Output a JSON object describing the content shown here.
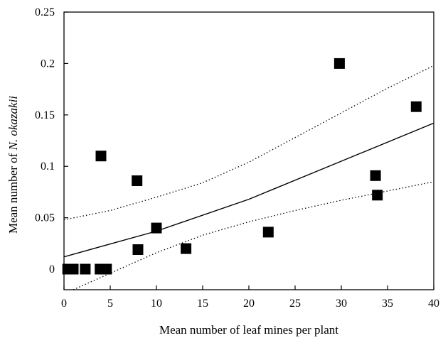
{
  "chart_data": {
    "type": "scatter",
    "title": "",
    "xlabel": "Mean number of leaf mines per plant",
    "ylabel_prefix": "Mean number of ",
    "ylabel_italic": "N. okazakii",
    "xlim": [
      0,
      40
    ],
    "ylim": [
      -0.02,
      0.25
    ],
    "x_ticks": [
      0,
      5,
      10,
      15,
      20,
      25,
      30,
      35,
      40
    ],
    "x_tick_labels": [
      "0",
      "5",
      "10",
      "15",
      "20",
      "25",
      "30",
      "35",
      "40"
    ],
    "y_ticks": [
      0,
      0.05,
      0.1,
      0.15,
      0.2,
      0.25
    ],
    "y_tick_labels": [
      "0",
      "0.05",
      "0.1",
      "0.15",
      "0.2",
      "0.25"
    ],
    "grid": false,
    "marker": "square",
    "marker_color": "#000000",
    "points": [
      {
        "x": 0.4,
        "y": 0
      },
      {
        "x": 1.0,
        "y": 0
      },
      {
        "x": 2.3,
        "y": 0
      },
      {
        "x": 3.9,
        "y": 0
      },
      {
        "x": 4.6,
        "y": 0
      },
      {
        "x": 4.0,
        "y": 0.11
      },
      {
        "x": 7.9,
        "y": 0.086
      },
      {
        "x": 8.0,
        "y": 0.019
      },
      {
        "x": 10.0,
        "y": 0.04
      },
      {
        "x": 13.2,
        "y": 0.02
      },
      {
        "x": 22.1,
        "y": 0.036
      },
      {
        "x": 29.8,
        "y": 0.2
      },
      {
        "x": 33.7,
        "y": 0.091
      },
      {
        "x": 33.9,
        "y": 0.072
      },
      {
        "x": 38.1,
        "y": 0.158
      }
    ],
    "fit_line": [
      {
        "x": 0,
        "y": 0.012
      },
      {
        "x": 10,
        "y": 0.037
      },
      {
        "x": 20,
        "y": 0.068
      },
      {
        "x": 30,
        "y": 0.105
      },
      {
        "x": 40,
        "y": 0.142
      }
    ],
    "ci_upper": [
      {
        "x": 0,
        "y": 0.048
      },
      {
        "x": 5,
        "y": 0.057
      },
      {
        "x": 10,
        "y": 0.07
      },
      {
        "x": 15,
        "y": 0.084
      },
      {
        "x": 20,
        "y": 0.104
      },
      {
        "x": 25,
        "y": 0.128
      },
      {
        "x": 30,
        "y": 0.152
      },
      {
        "x": 35,
        "y": 0.176
      },
      {
        "x": 40,
        "y": 0.198
      }
    ],
    "ci_lower": [
      {
        "x": 1,
        "y": -0.02
      },
      {
        "x": 5,
        "y": -0.004
      },
      {
        "x": 10,
        "y": 0.016
      },
      {
        "x": 15,
        "y": 0.033
      },
      {
        "x": 20,
        "y": 0.046
      },
      {
        "x": 25,
        "y": 0.057
      },
      {
        "x": 30,
        "y": 0.067
      },
      {
        "x": 35,
        "y": 0.076
      },
      {
        "x": 40,
        "y": 0.085
      }
    ]
  }
}
